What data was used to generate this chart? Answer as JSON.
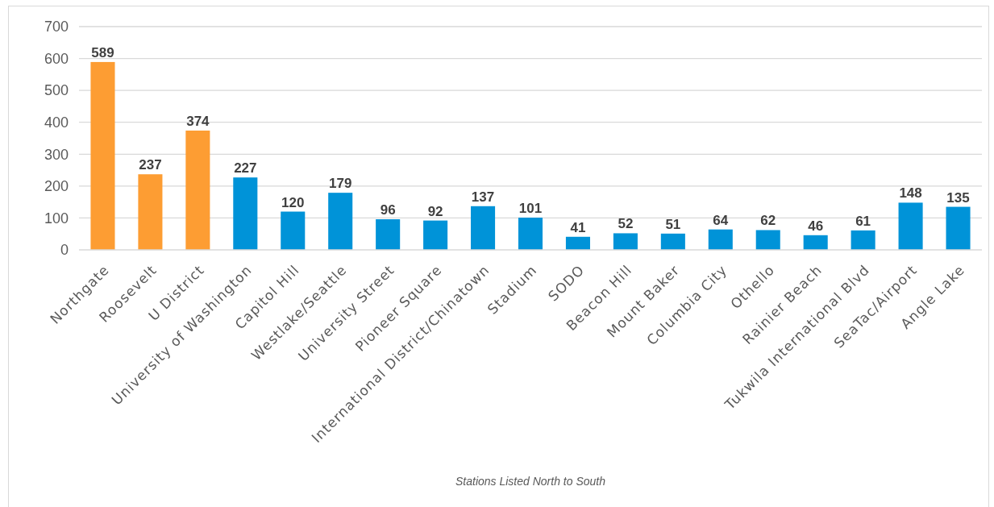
{
  "chart_data": {
    "type": "bar",
    "xlabel": "Stations Listed North to South",
    "categories": [
      "Northgate",
      "Roosevelt",
      "U District",
      "University of Washington",
      "Capitol Hill",
      "Westlake/Seattle",
      "University Street",
      "Pioneer Square",
      "International District/Chinatown",
      "Stadium",
      "SODO",
      "Beacon Hill",
      "Mount Baker",
      "Columbia City",
      "Othello",
      "Rainier Beach",
      "Tukwila International Blvd",
      "SeaTac/Airport",
      "Angle Lake"
    ],
    "values": [
      589,
      237,
      374,
      227,
      120,
      179,
      96,
      92,
      137,
      101,
      41,
      52,
      51,
      64,
      62,
      46,
      61,
      148,
      135
    ],
    "colors": [
      "#fd9d33",
      "#fd9d33",
      "#fd9d33",
      "#0093d8",
      "#0093d8",
      "#0093d8",
      "#0093d8",
      "#0093d8",
      "#0093d8",
      "#0093d8",
      "#0093d8",
      "#0093d8",
      "#0093d8",
      "#0093d8",
      "#0093d8",
      "#0093d8",
      "#0093d8",
      "#0093d8",
      "#0093d8"
    ],
    "ylim": [
      0,
      700
    ],
    "yticks": [
      0,
      100,
      200,
      300,
      400,
      500,
      600,
      700
    ],
    "grid": "y",
    "data_labels": true
  }
}
